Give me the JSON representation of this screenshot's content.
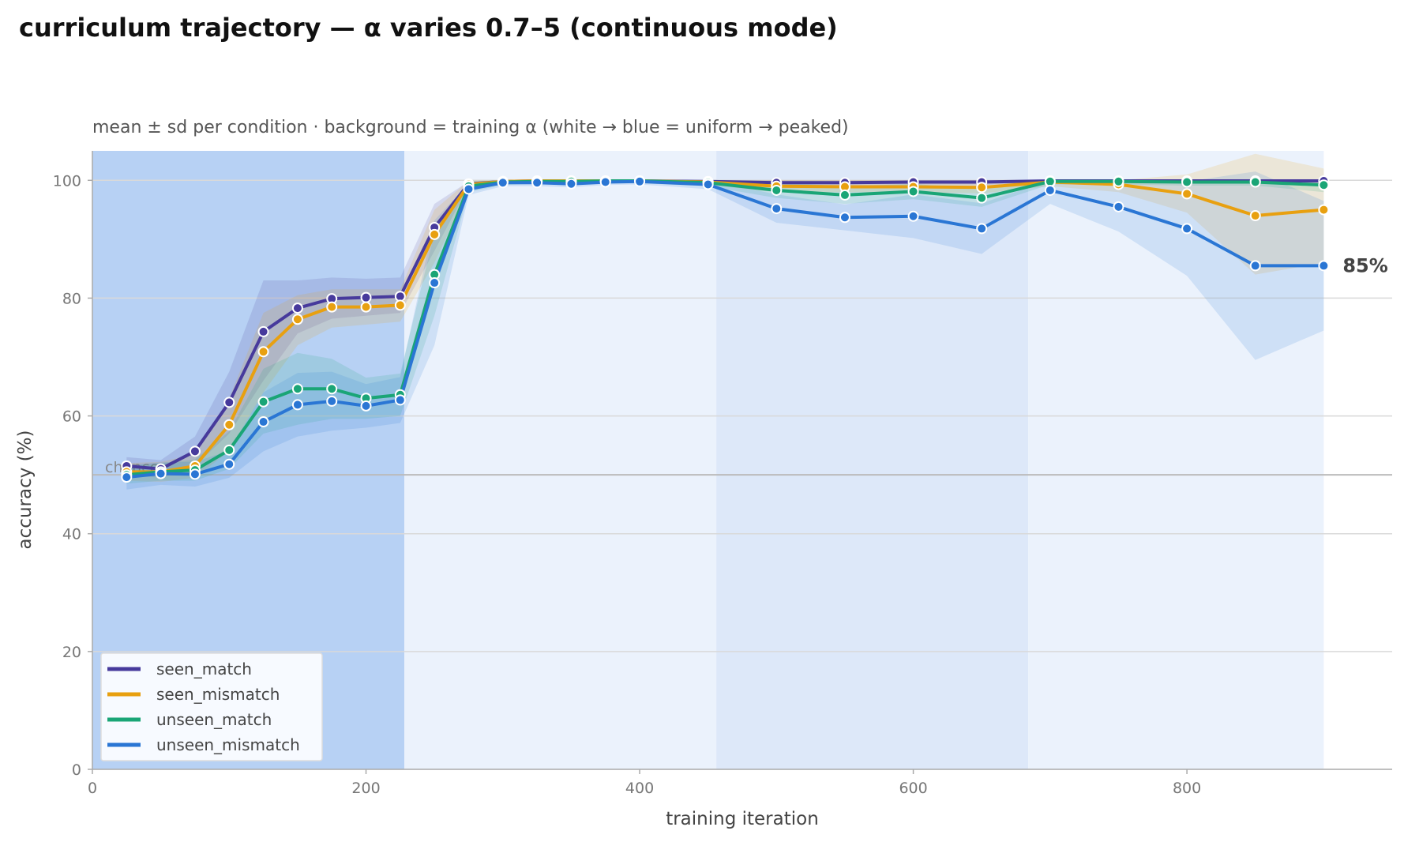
{
  "chart_data": {
    "type": "line",
    "title": "curriculum trajectory — α varies 0.7–5 (continuous mode)",
    "subtitle": "mean ± sd per condition · background = training α (white → blue = uniform → peaked)",
    "xlabel": "training iteration",
    "ylabel": "accuracy (%)",
    "xlim": [
      0,
      950
    ],
    "ylim": [
      0,
      105
    ],
    "xticks": [
      0,
      200,
      400,
      600,
      800
    ],
    "yticks": [
      0,
      20,
      40,
      60,
      80,
      100
    ],
    "grid": "horizontal",
    "legend_position": "bottom-left",
    "reference_line": {
      "y": 50,
      "label": "chance",
      "color": "#bbbbbb"
    },
    "end_label": {
      "series": "unseen_mismatch",
      "text": "85%"
    },
    "background_bands": [
      {
        "x0": 0,
        "x1": 228,
        "color": "#b7d1f4"
      },
      {
        "x0": 228,
        "x1": 456,
        "color": "#ebf2fc"
      },
      {
        "x0": 456,
        "x1": 684,
        "color": "#dde8f9"
      },
      {
        "x0": 684,
        "x1": 900,
        "color": "#ebf2fc"
      }
    ],
    "x": [
      25,
      50,
      75,
      100,
      125,
      150,
      175,
      200,
      225,
      250,
      275,
      300,
      325,
      350,
      375,
      400,
      450,
      500,
      550,
      600,
      650,
      700,
      750,
      800,
      850,
      900
    ],
    "series": [
      {
        "name": "seen_match",
        "color": "#473a9c",
        "values": [
          51.5,
          51,
          54,
          62.3,
          74.3,
          78.3,
          79.9,
          80.1,
          80.3,
          92,
          99.4,
          99.8,
          99.9,
          99.9,
          99.9,
          99.9,
          99.8,
          99.6,
          99.6,
          99.7,
          99.7,
          99.9,
          99.9,
          99.9,
          99.9,
          99.9
        ],
        "sd_lower": [
          50,
          49.5,
          51.5,
          57,
          66,
          74,
          76.5,
          77,
          77.5,
          88,
          99,
          99.5,
          99.6,
          99.6,
          99.6,
          99.6,
          99.4,
          99.1,
          99.1,
          99.2,
          99.2,
          99.6,
          99.6,
          99.6,
          99.6,
          99.6
        ],
        "sd_upper": [
          53,
          52.5,
          56.5,
          67.5,
          83,
          83,
          83.5,
          83.3,
          83.5,
          96,
          99.8,
          100,
          100,
          100,
          100,
          100,
          100,
          100,
          100,
          100,
          100,
          100,
          100,
          100,
          100,
          100
        ]
      },
      {
        "name": "seen_mismatch",
        "color": "#e8a010",
        "values": [
          50.5,
          50.5,
          51.5,
          58.5,
          70.9,
          76.4,
          78.5,
          78.5,
          78.8,
          90.8,
          99.3,
          99.8,
          99.9,
          99.9,
          99.9,
          99.9,
          99.7,
          99,
          98.9,
          98.9,
          98.8,
          99.7,
          99.3,
          97.7,
          94,
          95
        ],
        "sd_lower": [
          49,
          48.8,
          49.5,
          54,
          64,
          72,
          75,
          75.5,
          76,
          86,
          98.5,
          99.3,
          99.5,
          99.5,
          99.5,
          99.5,
          99.2,
          98,
          98,
          98,
          97.8,
          99,
          98,
          94.5,
          84,
          86
        ],
        "sd_upper": [
          52,
          52.2,
          53.5,
          63,
          77.5,
          80.5,
          81.5,
          81.5,
          81.5,
          95,
          99.9,
          100,
          100,
          100,
          100,
          100,
          100,
          100,
          100,
          100,
          100,
          100,
          100,
          101,
          104.5,
          102
        ]
      },
      {
        "name": "unseen_match",
        "color": "#1aa576",
        "values": [
          50,
          50.5,
          50.8,
          54.2,
          62.4,
          64.6,
          64.6,
          63,
          63.6,
          84,
          99,
          99.7,
          99.8,
          99.8,
          99.9,
          99.9,
          99.6,
          98.3,
          97.5,
          98.1,
          97,
          99.8,
          99.8,
          99.7,
          99.7,
          99.2
        ],
        "sd_lower": [
          48.5,
          49,
          49,
          51,
          57,
          58.5,
          59.5,
          59.5,
          60,
          77,
          98,
          99.2,
          99.4,
          99.4,
          99.5,
          99.5,
          99,
          97,
          96,
          96.8,
          95.5,
          99.3,
          99.3,
          99.1,
          99.1,
          98
        ],
        "sd_upper": [
          51.5,
          52,
          52.6,
          57.4,
          68,
          70.7,
          69.7,
          66.5,
          67.2,
          91,
          99.9,
          100,
          100,
          100,
          100,
          100,
          100,
          99.6,
          99,
          99.4,
          98.5,
          100,
          100,
          100,
          100,
          100
        ]
      },
      {
        "name": "unseen_mismatch",
        "color": "#2a76d4",
        "values": [
          49.6,
          50.2,
          50.1,
          51.8,
          59,
          61.9,
          62.5,
          61.7,
          62.7,
          82.6,
          98.5,
          99.6,
          99.6,
          99.4,
          99.7,
          99.8,
          99.3,
          95.2,
          93.7,
          93.9,
          91.8,
          98.3,
          95.5,
          91.8,
          85.5,
          85.5
        ],
        "sd_lower": [
          47.5,
          48.3,
          48,
          49.5,
          54,
          56.5,
          57.5,
          58,
          58.8,
          72,
          97.5,
          99,
          99,
          98.8,
          99.2,
          99.3,
          98.5,
          92.8,
          91.5,
          90.2,
          87.5,
          96,
          91.3,
          83.8,
          69.5,
          74.5
        ],
        "sd_upper": [
          51.7,
          52.1,
          52.2,
          54.1,
          64,
          67.3,
          67.5,
          65.4,
          66.6,
          93.2,
          99.5,
          100,
          100,
          100,
          100,
          100,
          100,
          97.6,
          95.9,
          97.6,
          96.1,
          100,
          99.7,
          99.8,
          101.5,
          96.5
        ]
      }
    ]
  }
}
